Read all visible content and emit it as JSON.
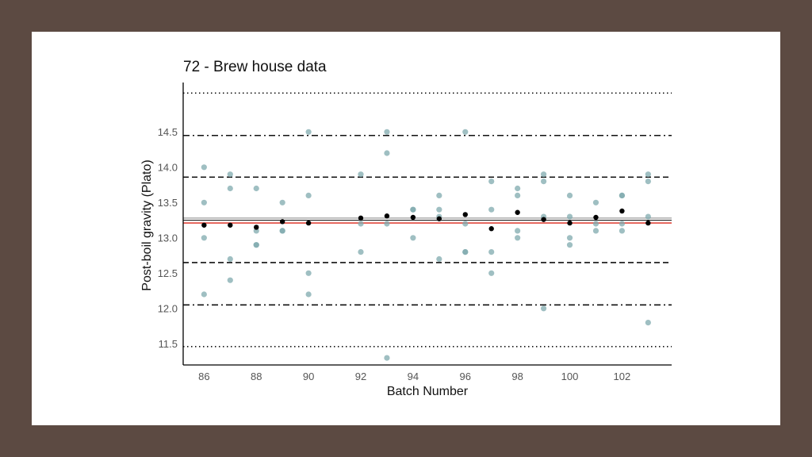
{
  "colors": {
    "background": "#5c4a42",
    "panel": "#ffffff",
    "point": "#7fa9ae",
    "mean_point": "#000000",
    "target_line": "#e0473c",
    "center_line": "#222222",
    "limit_line": "#111111"
  },
  "chart_data": {
    "type": "scatter",
    "title": "72 - Brew house data",
    "xlabel": "Batch Number",
    "ylabel": "Post-boil gravity (Plato)",
    "xlim": [
      85.2,
      103.9
    ],
    "ylim": [
      11.2,
      15.2
    ],
    "x_ticks": [
      86,
      88,
      90,
      92,
      94,
      96,
      98,
      100,
      102
    ],
    "x_tick_labels": [
      "86",
      "88",
      "90",
      "92",
      "94",
      "96",
      "98",
      "100",
      "102"
    ],
    "y_ticks": [
      11.5,
      12.0,
      12.5,
      13.0,
      13.5,
      14.0,
      14.5
    ],
    "y_tick_labels": [
      "11.5",
      "12.0",
      "12.5",
      "13.0",
      "13.5",
      "14.0",
      "14.5"
    ],
    "grid": false,
    "reference_lines": [
      {
        "y": 15.05,
        "style": "dotted"
      },
      {
        "y": 14.45,
        "style": "dashdot"
      },
      {
        "y": 13.86,
        "style": "dashed"
      },
      {
        "y": 13.28,
        "style": "solid-gray"
      },
      {
        "y": 13.25,
        "style": "solid-black"
      },
      {
        "y": 13.21,
        "style": "solid-red"
      },
      {
        "y": 12.65,
        "style": "dashed"
      },
      {
        "y": 12.05,
        "style": "dashdot"
      },
      {
        "y": 11.46,
        "style": "dotted"
      }
    ],
    "series": [
      {
        "role": "individual-measurements",
        "points": [
          [
            86,
            14.0
          ],
          [
            86,
            13.5
          ],
          [
            86,
            13.0
          ],
          [
            86,
            12.2
          ],
          [
            87,
            13.9
          ],
          [
            87,
            13.7
          ],
          [
            87,
            12.7
          ],
          [
            87,
            12.4
          ],
          [
            88,
            13.7
          ],
          [
            88,
            13.1
          ],
          [
            88,
            12.9
          ],
          [
            88,
            12.9
          ],
          [
            89,
            13.5
          ],
          [
            89,
            13.1
          ],
          [
            89,
            13.1
          ],
          [
            90,
            14.5
          ],
          [
            90,
            13.6
          ],
          [
            90,
            12.5
          ],
          [
            90,
            12.2
          ],
          [
            92,
            13.9
          ],
          [
            92,
            13.2
          ],
          [
            92,
            12.8
          ],
          [
            93,
            14.5
          ],
          [
            93,
            14.2
          ],
          [
            93,
            13.2
          ],
          [
            93,
            11.3
          ],
          [
            94,
            13.4
          ],
          [
            94,
            13.4
          ],
          [
            94,
            13.0
          ],
          [
            95,
            13.6
          ],
          [
            95,
            13.4
          ],
          [
            95,
            13.3
          ],
          [
            95,
            12.7
          ],
          [
            96,
            14.5
          ],
          [
            96,
            13.2
          ],
          [
            96,
            12.8
          ],
          [
            96,
            12.8
          ],
          [
            97,
            13.8
          ],
          [
            97,
            13.4
          ],
          [
            97,
            12.8
          ],
          [
            97,
            12.5
          ],
          [
            98,
            13.7
          ],
          [
            98,
            13.6
          ],
          [
            98,
            13.1
          ],
          [
            98,
            13.0
          ],
          [
            99,
            13.9
          ],
          [
            99,
            13.8
          ],
          [
            99,
            13.3
          ],
          [
            99,
            12.0
          ],
          [
            100,
            13.6
          ],
          [
            100,
            13.3
          ],
          [
            100,
            13.0
          ],
          [
            100,
            12.9
          ],
          [
            101,
            13.5
          ],
          [
            101,
            13.2
          ],
          [
            101,
            13.1
          ],
          [
            102,
            13.6
          ],
          [
            102,
            13.6
          ],
          [
            102,
            13.2
          ],
          [
            102,
            13.1
          ],
          [
            103,
            13.9
          ],
          [
            103,
            13.8
          ],
          [
            103,
            13.3
          ],
          [
            103,
            11.8
          ]
        ]
      },
      {
        "role": "batch-means",
        "points": [
          [
            86,
            13.18
          ],
          [
            87,
            13.18
          ],
          [
            88,
            13.15
          ],
          [
            89,
            13.23
          ],
          [
            90,
            13.21
          ],
          [
            92,
            13.28
          ],
          [
            93,
            13.31
          ],
          [
            94,
            13.29
          ],
          [
            95,
            13.27
          ],
          [
            96,
            13.33
          ],
          [
            97,
            13.13
          ],
          [
            98,
            13.36
          ],
          [
            99,
            13.26
          ],
          [
            100,
            13.21
          ],
          [
            101,
            13.29
          ],
          [
            102,
            13.38
          ],
          [
            103,
            13.21
          ]
        ]
      }
    ]
  }
}
